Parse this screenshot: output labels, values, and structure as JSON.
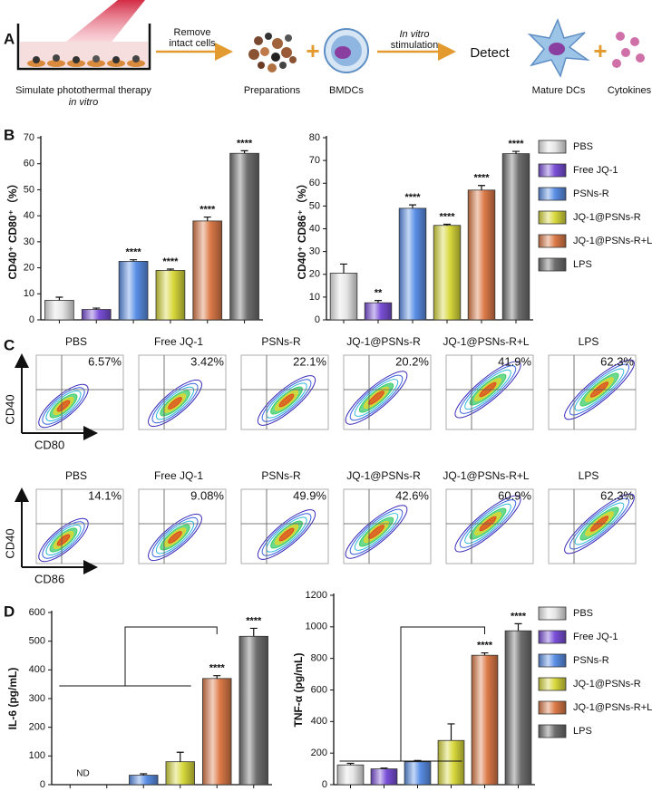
{
  "panel_labels": [
    "A",
    "B",
    "C",
    "D"
  ],
  "schematic": {
    "step1_label": "Simulate photothermal therapy",
    "step1_sublabel": "in vitro",
    "arrow1_label": [
      "Remove",
      "intact cells"
    ],
    "preparations": "Preparations",
    "bmdcs": "BMDCs",
    "arrow2_label_italic": "In vitro",
    "arrow2_label": "stimulation",
    "detect": "Detect",
    "mature_dcs": "Mature DCs",
    "cytokines": "Cytokines"
  },
  "chart_data": [
    {
      "type": "bar",
      "y_label": "CD40⁺ CD80⁺（%）",
      "categories": [
        "PBS",
        "Free JQ-1",
        "PSNs-R",
        "JQ-1@PSNs-R",
        "JQ-1@PSNs-R+L",
        "LPS"
      ],
      "colors": [
        "#e6e6e6",
        "#7a4fd8",
        "#5a8fe6",
        "#d8d83c",
        "#dc7a48",
        "#6e6e6e"
      ],
      "values": [
        7.5,
        4,
        22.5,
        19,
        38,
        64
      ],
      "errors": [
        1.2,
        0.5,
        0.6,
        0.5,
        1.5,
        1
      ],
      "significance": [
        null,
        null,
        "****",
        "****",
        "****",
        "****"
      ],
      "ylim": [
        0,
        70
      ],
      "yticks": [
        0,
        10,
        20,
        30,
        40,
        50,
        60,
        70
      ],
      "legend": false
    },
    {
      "type": "bar",
      "y_label": "CD40⁺ CD86⁺（%）",
      "categories": [
        "PBS",
        "Free JQ-1",
        "PSNs-R",
        "JQ-1@PSNs-R",
        "JQ-1@PSNs-R+L",
        "LPS"
      ],
      "colors": [
        "#e6e6e6",
        "#7a4fd8",
        "#5a8fe6",
        "#d8d83c",
        "#dc7a48",
        "#6e6e6e"
      ],
      "values": [
        20.5,
        7.5,
        49,
        41.5,
        57,
        73
      ],
      "errors": [
        4,
        1,
        1.5,
        0.5,
        2,
        1
      ],
      "significance": [
        null,
        "**",
        "****",
        "****",
        "****",
        "****"
      ],
      "ylim": [
        0,
        80
      ],
      "yticks": [
        0,
        10,
        20,
        30,
        40,
        50,
        60,
        70,
        80
      ],
      "legend": "right"
    },
    {
      "type": "bar",
      "y_label": "IL-6 (pg/mL)",
      "categories": [
        "PBS",
        "Free JQ-1",
        "PSNs-R",
        "JQ-1@PSNs-R",
        "JQ-1@PSNs-R+L",
        "LPS"
      ],
      "colors": [
        "#e6e6e6",
        "#7a4fd8",
        "#5a8fe6",
        "#d8d83c",
        "#dc7a48",
        "#6e6e6e"
      ],
      "values": [
        null,
        null,
        33,
        80,
        370,
        517
      ],
      "errors": [
        null,
        null,
        5,
        33,
        10,
        28
      ],
      "significance": [
        null,
        null,
        null,
        null,
        "****",
        "****"
      ],
      "nd_label": "ND",
      "ylim": [
        0,
        600
      ],
      "yticks": [
        0,
        100,
        200,
        300,
        400,
        500,
        600
      ],
      "legend": false
    },
    {
      "type": "bar",
      "y_label": "TNF-α (pg/mL)",
      "categories": [
        "PBS",
        "Free JQ-1",
        "PSNs-R",
        "JQ-1@PSNs-R",
        "JQ-1@PSNs-R+L",
        "LPS"
      ],
      "colors": [
        "#e6e6e6",
        "#7a4fd8",
        "#5a8fe6",
        "#d8d83c",
        "#dc7a48",
        "#6e6e6e"
      ],
      "values": [
        125,
        100,
        145,
        280,
        820,
        975
      ],
      "errors": [
        10,
        5,
        8,
        105,
        15,
        45
      ],
      "significance": [
        null,
        null,
        null,
        null,
        "****",
        "****"
      ],
      "ylim": [
        0,
        1200
      ],
      "yticks": [
        0,
        200,
        400,
        600,
        800,
        1000,
        1200
      ],
      "legend": "right"
    }
  ],
  "flow": {
    "rows": [
      {
        "y_axis": "CD40",
        "x_axis": "CD80",
        "plots": [
          {
            "name": "PBS",
            "percent": "6.57%"
          },
          {
            "name": "Free JQ-1",
            "percent": "3.42%"
          },
          {
            "name": "PSNs-R",
            "percent": "22.1%"
          },
          {
            "name": "JQ-1@PSNs-R",
            "percent": "20.2%"
          },
          {
            "name": "JQ-1@PSNs-R+L",
            "percent": "41.9%"
          },
          {
            "name": "LPS",
            "percent": "62.3%"
          }
        ]
      },
      {
        "y_axis": "CD40",
        "x_axis": "CD86",
        "plots": [
          {
            "name": "PBS",
            "percent": "14.1%"
          },
          {
            "name": "Free JQ-1",
            "percent": "9.08%"
          },
          {
            "name": "PSNs-R",
            "percent": "49.9%"
          },
          {
            "name": "JQ-1@PSNs-R",
            "percent": "42.6%"
          },
          {
            "name": "JQ-1@PSNs-R+L",
            "percent": "60.9%"
          },
          {
            "name": "LPS",
            "percent": "62.3%"
          }
        ]
      }
    ]
  }
}
